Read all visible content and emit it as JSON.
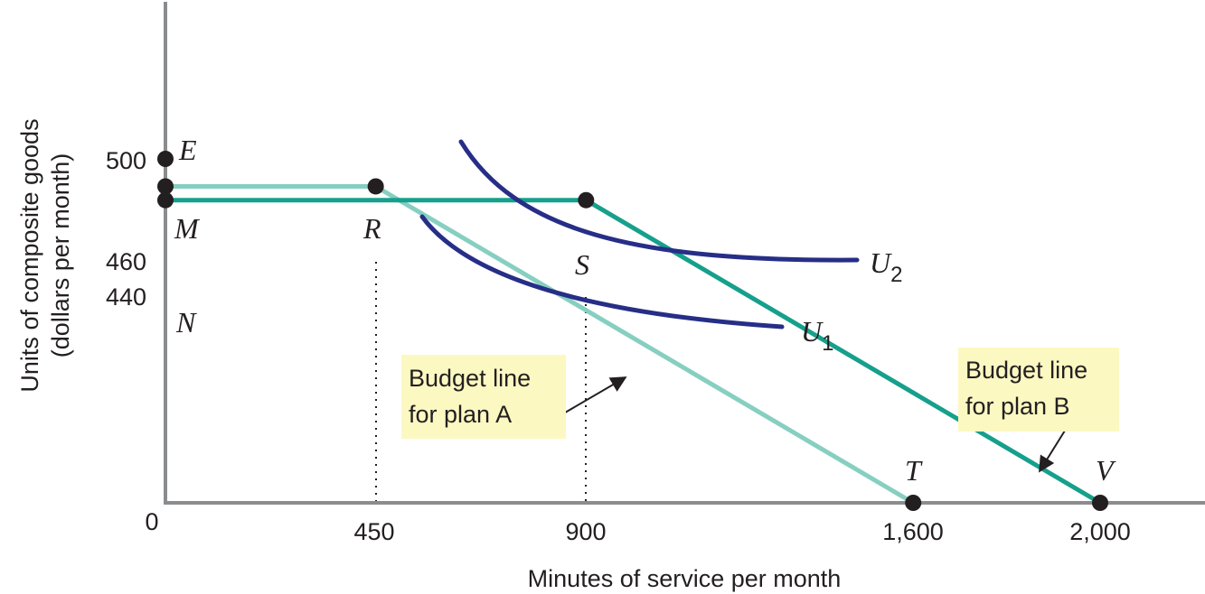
{
  "chart_data": {
    "type": "line",
    "xlabel": "Minutes of service per month",
    "ylabel": [
      "Units of composite goods",
      "(dollars per month)"
    ],
    "origin_label": "0",
    "x_ticks": [
      "450",
      "900",
      "1,600",
      "2,000"
    ],
    "y_ticks": [
      "500",
      "460",
      "440"
    ],
    "budget_lines": [
      {
        "plan": "A",
        "color": "#86cfc1",
        "points": [
          [
            0,
            460
          ],
          [
            450,
            460
          ],
          [
            1600,
            0
          ]
        ]
      },
      {
        "plan": "B",
        "color": "#16a08c",
        "points": [
          [
            0,
            440
          ],
          [
            900,
            440
          ],
          [
            2000,
            0
          ]
        ]
      }
    ],
    "indifference_curves": [
      {
        "name": "U",
        "subscript": "1",
        "color": "#262e87"
      },
      {
        "name": "U",
        "subscript": "2",
        "color": "#262e87"
      }
    ],
    "points": [
      {
        "label": "E",
        "x": 0,
        "y": 500
      },
      {
        "label": "M",
        "x": 0,
        "y": 460
      },
      {
        "label": "N",
        "x": 0,
        "y": 440
      },
      {
        "label": "R",
        "x": 450,
        "y": 460
      },
      {
        "label": "S",
        "x": 900,
        "y": 440
      },
      {
        "label": "T",
        "x": 1600,
        "y": 0
      },
      {
        "label": "V",
        "x": 2000,
        "y": 0
      }
    ],
    "annotations": [
      {
        "lines": [
          "Budget line",
          "for plan A"
        ]
      },
      {
        "lines": [
          "Budget line",
          "for plan B"
        ]
      }
    ]
  }
}
